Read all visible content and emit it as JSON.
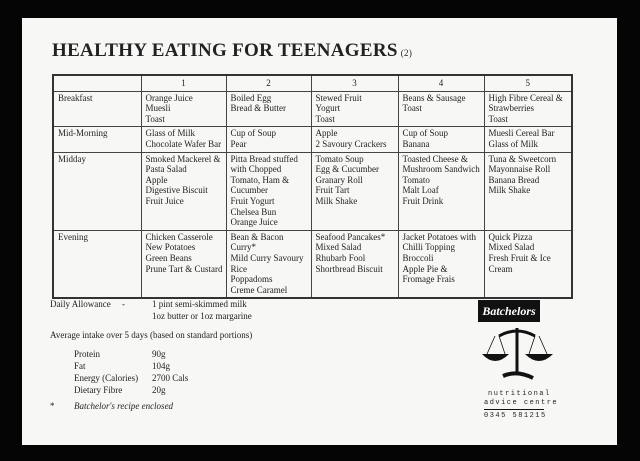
{
  "header": {
    "title": "HEALTHY EATING FOR TEENAGERS",
    "page": "(2)"
  },
  "table": {
    "day_headers": [
      "1",
      "2",
      "3",
      "4",
      "5"
    ],
    "rows": [
      {
        "label": "Breakfast",
        "cells": [
          [
            "Orange Juice",
            "Muesli",
            "Toast"
          ],
          [
            "Boiled Egg",
            "Bread & Butter"
          ],
          [
            "Stewed Fruit",
            "Yogurt",
            "Toast"
          ],
          [
            "Beans & Sausage",
            "Toast"
          ],
          [
            "High Fibre Cereal &",
            "Strawberries",
            "Toast"
          ]
        ]
      },
      {
        "label": "Mid-Morning",
        "cells": [
          [
            "Glass of Milk",
            "Chocolate Wafer Bar"
          ],
          [
            "Cup of Soup",
            "Pear"
          ],
          [
            "Apple",
            "2 Savoury Crackers"
          ],
          [
            "Cup of Soup",
            "Banana"
          ],
          [
            "Muesli Cereal Bar",
            "Glass of Milk"
          ]
        ]
      },
      {
        "label": "Midday",
        "cells": [
          [
            "Smoked Mackerel &",
            "Pasta Salad",
            "Apple",
            "Digestive Biscuit",
            "Fruit Juice"
          ],
          [
            "Pitta Bread stuffed",
            "with Chopped",
            "Tomato, Ham &",
            "Cucumber",
            "Fruit Yogurt",
            "Chelsea Bun",
            "Orange Juice"
          ],
          [
            "Tomato Soup",
            "Egg & Cucumber",
            "Granary Roll",
            "Fruit Tart",
            "Milk Shake"
          ],
          [
            "Toasted Cheese &",
            "Mushroom Sandwich",
            "Tomato",
            "Malt Loaf",
            "Fruit Drink"
          ],
          [
            "Tuna & Sweetcorn",
            "Mayonnaise Roll",
            "Banana Bread",
            "Milk Shake"
          ]
        ]
      },
      {
        "label": "Evening",
        "cells": [
          [
            "Chicken Casserole",
            "New Potatoes",
            "Green Beans",
            "Prune Tart & Custard"
          ],
          [
            "Bean & Bacon",
            "Curry*",
            "Mild Curry Savoury",
            "Rice",
            "Poppadoms",
            "Creme Caramel"
          ],
          [
            "Seafood Pancakes*",
            "Mixed Salad",
            "Rhubarb Fool",
            "Shortbread Biscuit"
          ],
          [
            "Jacket Potatoes with",
            "Chilli Topping",
            "Broccoli",
            "Apple Pie &",
            "Fromage Frais"
          ],
          [
            "Quick Pizza",
            "Mixed Salad",
            "Fresh Fruit & Ice",
            "Cream"
          ]
        ]
      }
    ]
  },
  "allowance": {
    "label": "Daily Allowance",
    "dash": "-",
    "items": [
      "1 pint semi-skimmed milk",
      "1oz butter or 1oz margarine"
    ]
  },
  "intake": {
    "heading": "Average intake over 5 days (based on standard portions)",
    "nutrients": [
      {
        "name": "Protein",
        "amount": "90g"
      },
      {
        "name": "Fat",
        "amount": "104g"
      },
      {
        "name": "Energy (Calories)",
        "amount": "2700 Cals"
      },
      {
        "name": "Dietary Fibre",
        "amount": "20g"
      }
    ]
  },
  "footnote": {
    "mark": "*",
    "text": "Batchelor's recipe enclosed"
  },
  "logo": {
    "brand": "Batchelors",
    "lines": [
      "nutritional",
      "advice centre"
    ],
    "phone": "0345 581215"
  }
}
